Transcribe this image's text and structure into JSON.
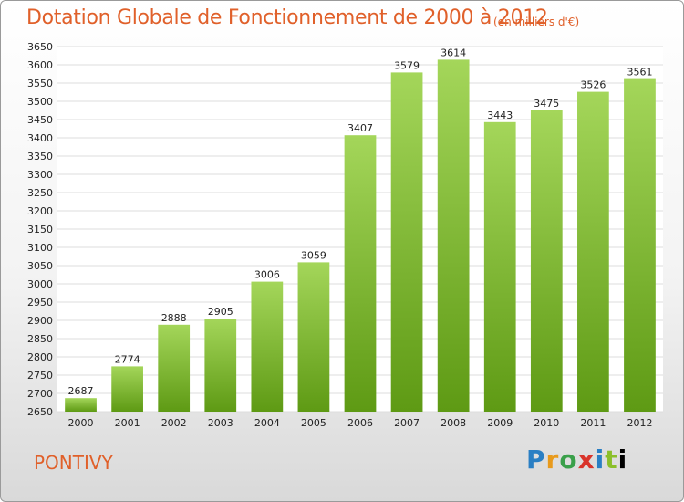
{
  "header": {
    "title": "Dotation Globale de Fonctionnement de 2000 à 2012",
    "unit": "(en milliers d'€)"
  },
  "footer": {
    "town": "PONTIVY",
    "logo_letters": [
      "P",
      "r",
      "o",
      "x",
      "i",
      "t",
      "i"
    ]
  },
  "colors": {
    "accent": "#e0602a",
    "bar_top": "#a4d65a",
    "bar_bottom": "#5e9a14",
    "plot_bg": "#ffffff",
    "grid": "#dddddd"
  },
  "chart_data": {
    "type": "bar",
    "categories": [
      "2000",
      "2001",
      "2002",
      "2003",
      "2004",
      "2005",
      "2006",
      "2007",
      "2008",
      "2009",
      "2010",
      "2011",
      "2012"
    ],
    "values": [
      2687,
      2774,
      2888,
      2905,
      3006,
      3059,
      3407,
      3579,
      3614,
      3443,
      3475,
      3526,
      3561
    ],
    "title": "Dotation Globale de Fonctionnement de 2000 à 2012",
    "ylim": [
      2650,
      3650
    ],
    "ytick_step": 50,
    "grid": true
  }
}
